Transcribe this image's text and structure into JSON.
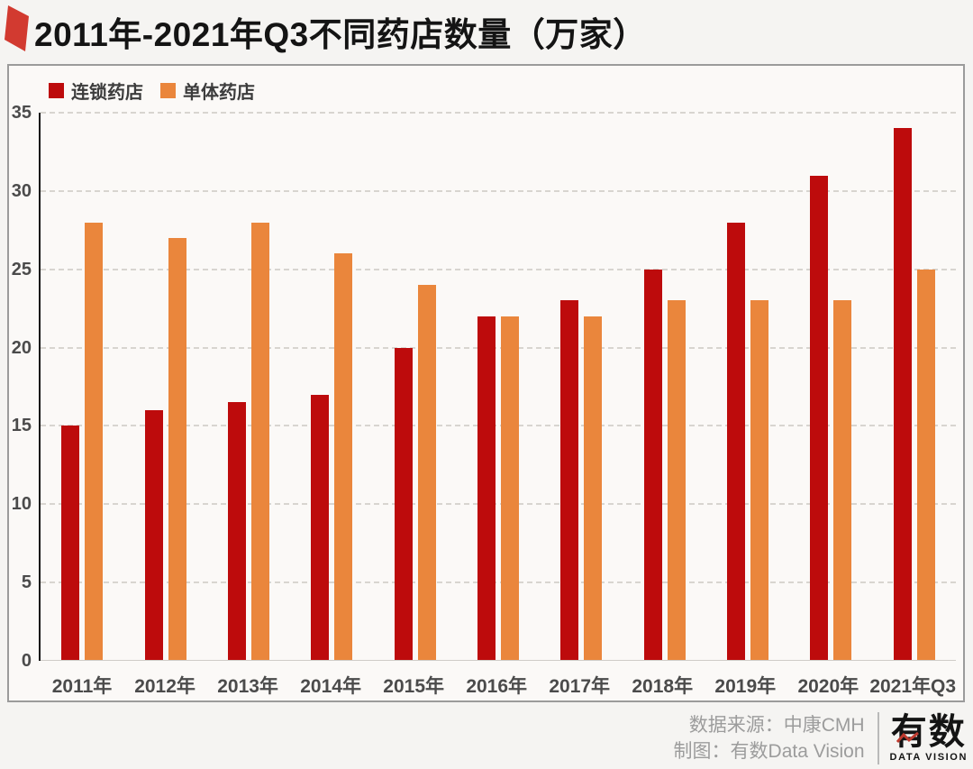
{
  "title": "2011年-2021年Q3不同药店数量（万家）",
  "chart_data": {
    "type": "bar",
    "categories": [
      "2011年",
      "2012年",
      "2013年",
      "2014年",
      "2015年",
      "2016年",
      "2017年",
      "2018年",
      "2019年",
      "2020年",
      "2021年Q3"
    ],
    "series": [
      {
        "name": "连锁药店",
        "color": "#bd0b0c",
        "values": [
          15,
          16,
          16.5,
          17,
          20,
          22,
          23,
          25,
          28,
          31,
          34
        ]
      },
      {
        "name": "单体药店",
        "color": "#ea863c",
        "values": [
          28,
          27,
          28,
          26,
          24,
          22,
          22,
          23,
          23,
          23,
          25
        ]
      }
    ],
    "title": "2011年-2021年Q3不同药店数量（万家）",
    "xlabel": "",
    "ylabel": "",
    "ylim": [
      0,
      35
    ],
    "ytick_step": 5,
    "grid": "horizontal-dashed",
    "legend_position": "top-left"
  },
  "footer": {
    "source_label": "数据来源：中康CMH",
    "credit_label": "制图：有数Data Vision",
    "logo_text": "有数",
    "logo_subtext": "DATA VISION"
  },
  "colors": {
    "chain_red": "#bd0b0c",
    "single_orange": "#ea863c",
    "title_mark_red": "#d23a30",
    "logo_zigzag_red": "#bf3a2e",
    "axis_text": "#4b4b4b",
    "footer_text": "#9c9c9c",
    "box_border": "#9b9b9b",
    "box_background": "#fbf9f7"
  }
}
